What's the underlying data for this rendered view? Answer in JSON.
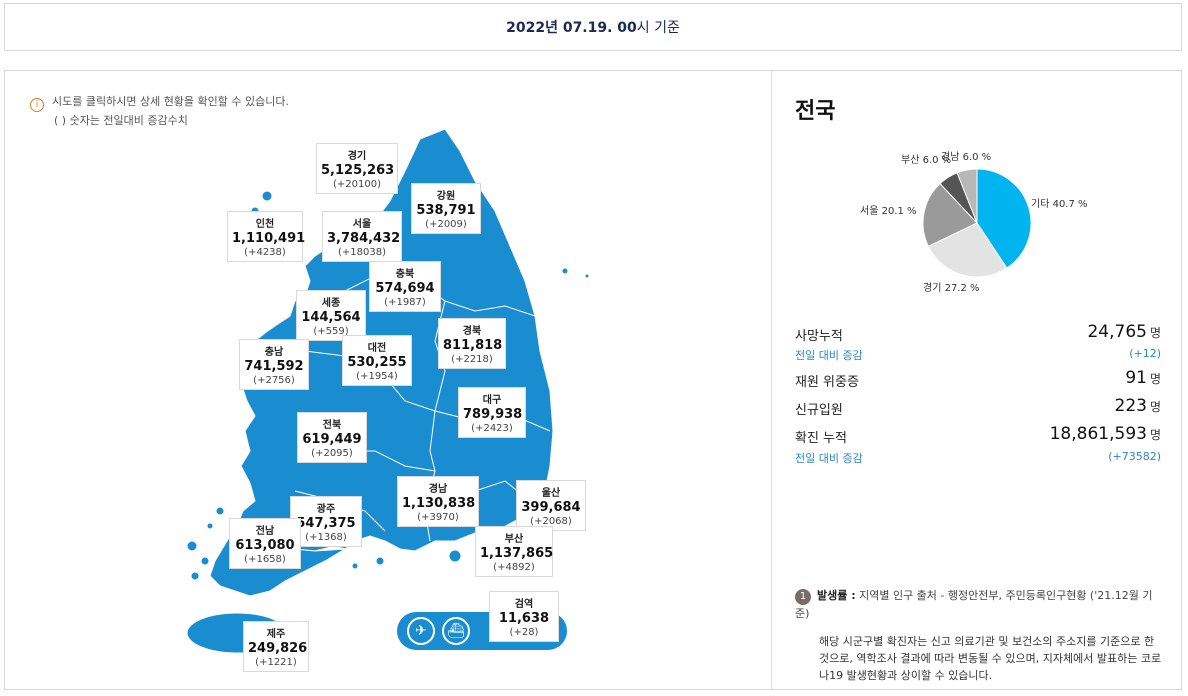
{
  "date_bar": {
    "date": "2022년 07.19. 00",
    "suffix": "시 기준"
  },
  "info": {
    "line1": "시도를 클릭하시면 상세 현황을 확인할 수 있습니다.",
    "line2": "( ) 숫자는 전일대비 증감수치"
  },
  "regions": [
    {
      "id": "gyeonggi",
      "name": "경기",
      "value": "5,125,263",
      "inc": "(+20100)"
    },
    {
      "id": "gangwon",
      "name": "강원",
      "value": "538,791",
      "inc": "(+2009)"
    },
    {
      "id": "incheon",
      "name": "인천",
      "value": "1,110,491",
      "inc": "(+4238)"
    },
    {
      "id": "seoul",
      "name": "서울",
      "value": "3,784,432",
      "inc": "(+18038)"
    },
    {
      "id": "chungbuk",
      "name": "충북",
      "value": "574,694",
      "inc": "(+1987)"
    },
    {
      "id": "sejong",
      "name": "세종",
      "value": "144,564",
      "inc": "(+559)"
    },
    {
      "id": "gyeongbuk",
      "name": "경북",
      "value": "811,818",
      "inc": "(+2218)"
    },
    {
      "id": "chungnam",
      "name": "충남",
      "value": "741,592",
      "inc": "(+2756)"
    },
    {
      "id": "daejeon",
      "name": "대전",
      "value": "530,255",
      "inc": "(+1954)"
    },
    {
      "id": "daegu",
      "name": "대구",
      "value": "789,938",
      "inc": "(+2423)"
    },
    {
      "id": "jeonbuk",
      "name": "전북",
      "value": "619,449",
      "inc": "(+2095)"
    },
    {
      "id": "gyeongnam",
      "name": "경남",
      "value": "1,130,838",
      "inc": "(+3970)"
    },
    {
      "id": "ulsan",
      "name": "울산",
      "value": "399,684",
      "inc": "(+2068)"
    },
    {
      "id": "gwangju",
      "name": "광주",
      "value": "547,375",
      "inc": "(+1368)"
    },
    {
      "id": "jeonnam",
      "name": "전남",
      "value": "613,080",
      "inc": "(+1658)"
    },
    {
      "id": "busan",
      "name": "부산",
      "value": "1,137,865",
      "inc": "(+4892)"
    },
    {
      "id": "quarantine",
      "name": "검역",
      "value": "11,638",
      "inc": "(+28)"
    },
    {
      "id": "jeju",
      "name": "제주",
      "value": "249,826",
      "inc": "(+1221)"
    }
  ],
  "quarantine_icons": [
    "airplane-icon",
    "ship-icon"
  ],
  "right": {
    "title": "전국",
    "pie": {
      "slices": [
        {
          "name": "기타",
          "label": "기타 40.7 %",
          "value": 40.7,
          "color": "#00b4f0"
        },
        {
          "name": "경기",
          "label": "경기 27.2 %",
          "value": 27.2,
          "color": "#e3e3e3"
        },
        {
          "name": "서울",
          "label": "서울 20.1 %",
          "value": 20.1,
          "color": "#9a9a9a"
        },
        {
          "name": "부산",
          "label": "부산 6.0 %",
          "value": 6.0,
          "color": "#555555"
        },
        {
          "name": "경남",
          "label": "경남 6.0 %",
          "value": 6.0,
          "color": "#b8b8b8"
        }
      ]
    },
    "stats": {
      "deaths_label": "사망누적",
      "deaths_value": "24,765",
      "deaths_unit": "명",
      "deaths_sub_label": "전일 대비 증감",
      "deaths_sub_value": "(+12)",
      "critical_label": "재원 위중증",
      "critical_value": "91",
      "critical_unit": "명",
      "admit_label": "신규입원",
      "admit_value": "223",
      "admit_unit": "명",
      "confirmed_label": "확진 누적",
      "confirmed_value": "18,861,593",
      "confirmed_unit": "명",
      "confirmed_sub_label": "전일 대비 증감",
      "confirmed_sub_value": "(+73582)"
    },
    "note": {
      "number": "1",
      "title": "발생률 :",
      "source": " 지역별 인구 출처 - 행정안전부, 주민등록인구현황 ('21.12월 기준)",
      "body": "해당 시군구별 확진자는 신고 의료기관 및 보건소의 주소지를 기준으로 한 것으로, 역학조사 결과에 따라 변동될 수 있으며, 지자체에서 발표하는 코로나19 발생현황과 상이할 수 있습니다."
    }
  }
}
